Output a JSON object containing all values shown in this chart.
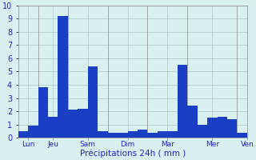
{
  "bars": [
    0.5,
    0.9,
    3.8,
    1.6,
    9.2,
    2.1,
    2.2,
    5.4,
    0.5,
    0.4,
    0.4,
    0.5,
    0.6,
    0.4,
    0.5,
    0.5,
    5.5,
    2.4,
    1.0,
    1.5,
    1.6,
    1.4,
    0.4
  ],
  "day_separators": [
    1.5,
    4.5,
    8.5,
    12.5,
    16.5,
    21.5
  ],
  "tick_positions": [
    0.5,
    3.0,
    6.5,
    10.5,
    14.5,
    19.0,
    22.5
  ],
  "tick_labels": [
    "Lun",
    "Jeu",
    "Sam",
    "Dim",
    "Mar",
    "Mer",
    "Ven"
  ],
  "xlabel": "Précipitations 24h ( mm )",
  "ylim": [
    0,
    10
  ],
  "yticks": [
    0,
    1,
    2,
    3,
    4,
    5,
    6,
    7,
    8,
    9,
    10
  ],
  "bar_color": "#1a3fc4",
  "bg_color": "#d8f0f0",
  "grid_color": "#aacaca",
  "tick_label_color": "#2222bb",
  "xlabel_color": "#2222bb"
}
